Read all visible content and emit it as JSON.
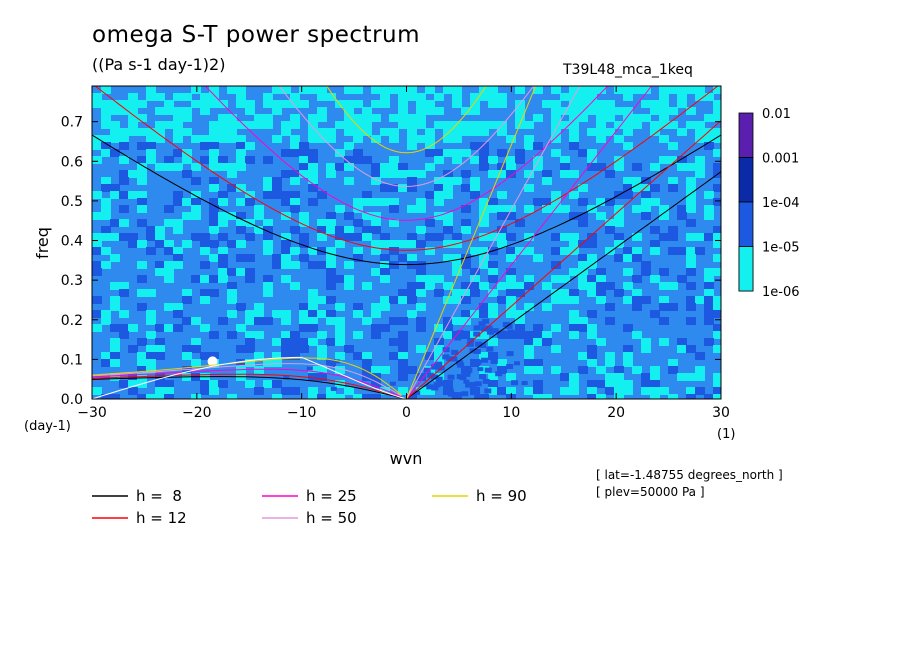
{
  "header": {
    "title": "omega S-T power spectrum",
    "units": "((Pa s-1 day-1)2)",
    "dataset": "T39L48_mca_1keq"
  },
  "notes": {
    "lat": "[ lat=-1.48755 degrees_north ]",
    "plev": "[ plev=50000 Pa ]"
  },
  "chart_data": {
    "type": "heatmap",
    "title": "omega S-T power spectrum",
    "subtitle": "((Pa s-1 day-1)2)",
    "xlabel": "wvn",
    "ylabel": "freq",
    "x_unit_label": "(1)",
    "y_unit_label": "(day-1)",
    "xlim": [
      -30,
      30
    ],
    "ylim": [
      0,
      0.79
    ],
    "x_ticks": [
      -30,
      -20,
      -10,
      0,
      10,
      20,
      30
    ],
    "x_tick_labels": [
      "−30",
      "−20",
      "−10",
      "0",
      "10",
      "20",
      "30"
    ],
    "y_ticks": [
      0,
      0.1,
      0.2,
      0.3,
      0.4,
      0.5,
      0.6,
      0.7
    ],
    "y_tick_labels": [
      "0.0",
      "0.1",
      "0.2",
      "0.3",
      "0.4",
      "0.5",
      "0.6",
      "0.7"
    ],
    "colorbar": {
      "levels": [
        "0.01",
        "0.001",
        "1e-04",
        "1e-05",
        "1e-06"
      ],
      "colors": [
        "#5a1fae",
        "#0a2aa8",
        "#1c58e0",
        "#2f8af0",
        "#14f0f0"
      ]
    },
    "field_summary": "log10 power mostly between 1e-06 and 1e-04; higher (1e-04 to 0.001) near the origin along positive wavenumbers and at low frequency",
    "dispersion_curves": [
      {
        "name": "h =  8",
        "color": "#000000",
        "equivalent_depth": 8
      },
      {
        "name": "h = 12",
        "color": "#ff0000",
        "equivalent_depth": 12
      },
      {
        "name": "h = 25",
        "color": "#ff00cc",
        "equivalent_depth": 25
      },
      {
        "name": "h = 50",
        "color": "#e29ae2",
        "equivalent_depth": 50
      },
      {
        "name": "h = 90",
        "color": "#e8d400",
        "equivalent_depth": 90
      }
    ]
  }
}
